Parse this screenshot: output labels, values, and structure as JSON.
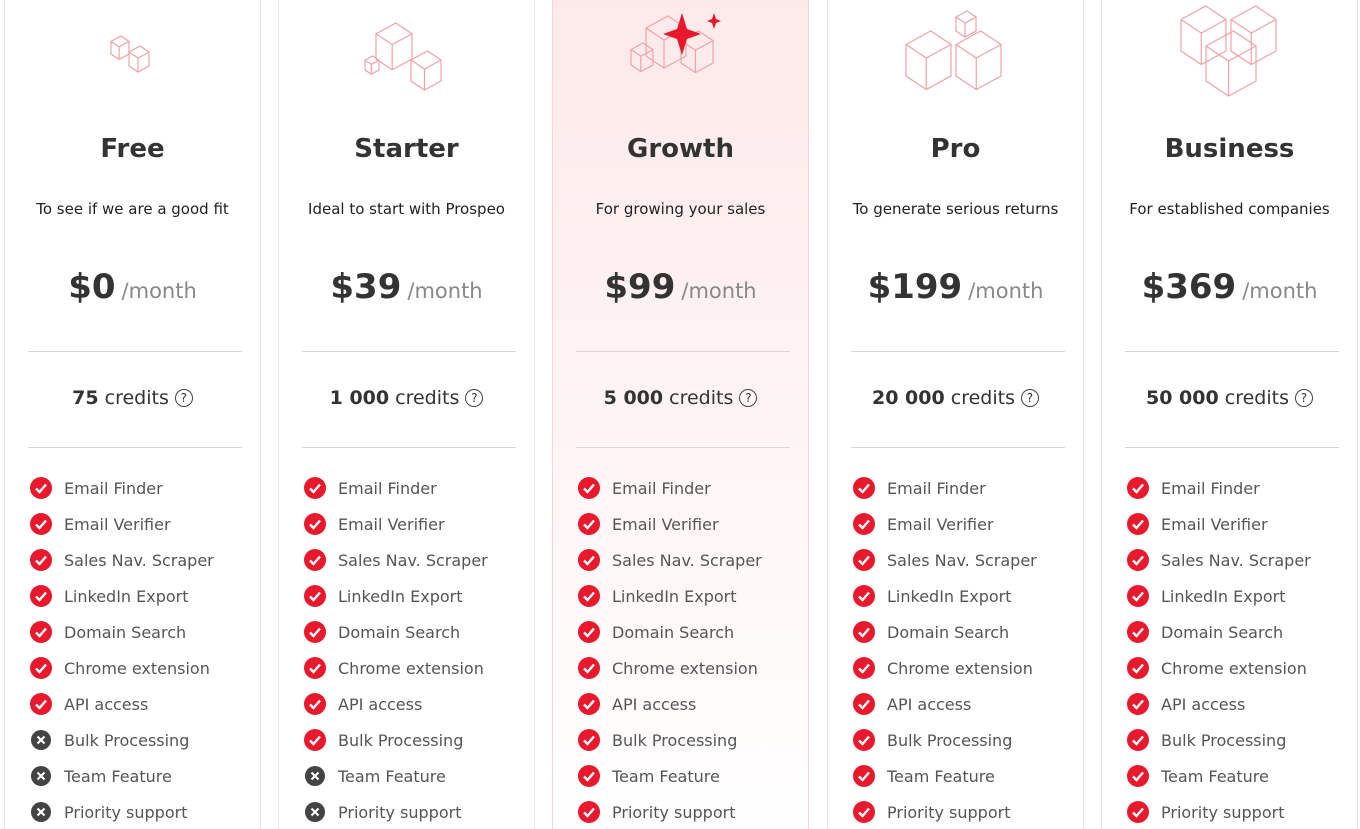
{
  "plans": [
    {
      "name": "Free",
      "tagline": "To see if we are a good fit",
      "price": "$0",
      "period": "/month",
      "credits_amount": "75",
      "credits_word": "credits",
      "features": [
        {
          "label": "Email Finder",
          "included": true
        },
        {
          "label": "Email Verifier",
          "included": true
        },
        {
          "label": "Sales Nav. Scraper",
          "included": true
        },
        {
          "label": "LinkedIn Export",
          "included": true
        },
        {
          "label": "Domain Search",
          "included": true
        },
        {
          "label": "Chrome extension",
          "included": true
        },
        {
          "label": "API access",
          "included": true
        },
        {
          "label": "Bulk Processing",
          "included": false
        },
        {
          "label": "Team Feature",
          "included": false
        },
        {
          "label": "Priority support",
          "included": false
        }
      ]
    },
    {
      "name": "Starter",
      "tagline": "Ideal to start with Prospeo",
      "price": "$39",
      "period": "/month",
      "credits_amount": "1 000",
      "credits_word": "credits",
      "features": [
        {
          "label": "Email Finder",
          "included": true
        },
        {
          "label": "Email Verifier",
          "included": true
        },
        {
          "label": "Sales Nav. Scraper",
          "included": true
        },
        {
          "label": "LinkedIn Export",
          "included": true
        },
        {
          "label": "Domain Search",
          "included": true
        },
        {
          "label": "Chrome extension",
          "included": true
        },
        {
          "label": "API access",
          "included": true
        },
        {
          "label": "Bulk Processing",
          "included": true
        },
        {
          "label": "Team Feature",
          "included": false
        },
        {
          "label": "Priority support",
          "included": false
        }
      ]
    },
    {
      "name": "Growth",
      "tagline": "For growing your sales",
      "price": "$99",
      "period": "/month",
      "credits_amount": "5 000",
      "credits_word": "credits",
      "highlighted": true,
      "features": [
        {
          "label": "Email Finder",
          "included": true
        },
        {
          "label": "Email Verifier",
          "included": true
        },
        {
          "label": "Sales Nav. Scraper",
          "included": true
        },
        {
          "label": "LinkedIn Export",
          "included": true
        },
        {
          "label": "Domain Search",
          "included": true
        },
        {
          "label": "Chrome extension",
          "included": true
        },
        {
          "label": "API access",
          "included": true
        },
        {
          "label": "Bulk Processing",
          "included": true
        },
        {
          "label": "Team Feature",
          "included": true
        },
        {
          "label": "Priority support",
          "included": true
        }
      ]
    },
    {
      "name": "Pro",
      "tagline": "To generate serious returns",
      "price": "$199",
      "period": "/month",
      "credits_amount": "20 000",
      "credits_word": "credits",
      "features": [
        {
          "label": "Email Finder",
          "included": true
        },
        {
          "label": "Email Verifier",
          "included": true
        },
        {
          "label": "Sales Nav. Scraper",
          "included": true
        },
        {
          "label": "LinkedIn Export",
          "included": true
        },
        {
          "label": "Domain Search",
          "included": true
        },
        {
          "label": "Chrome extension",
          "included": true
        },
        {
          "label": "API access",
          "included": true
        },
        {
          "label": "Bulk Processing",
          "included": true
        },
        {
          "label": "Team Feature",
          "included": true
        },
        {
          "label": "Priority support",
          "included": true
        }
      ]
    },
    {
      "name": "Business",
      "tagline": "For established companies",
      "price": "$369",
      "period": "/month",
      "credits_amount": "50 000",
      "credits_word": "credits",
      "features": [
        {
          "label": "Email Finder",
          "included": true
        },
        {
          "label": "Email Verifier",
          "included": true
        },
        {
          "label": "Sales Nav. Scraper",
          "included": true
        },
        {
          "label": "LinkedIn Export",
          "included": true
        },
        {
          "label": "Domain Search",
          "included": true
        },
        {
          "label": "Chrome extension",
          "included": true
        },
        {
          "label": "API access",
          "included": true
        },
        {
          "label": "Bulk Processing",
          "included": true
        },
        {
          "label": "Team Feature",
          "included": true
        },
        {
          "label": "Priority support",
          "included": true
        }
      ]
    }
  ]
}
